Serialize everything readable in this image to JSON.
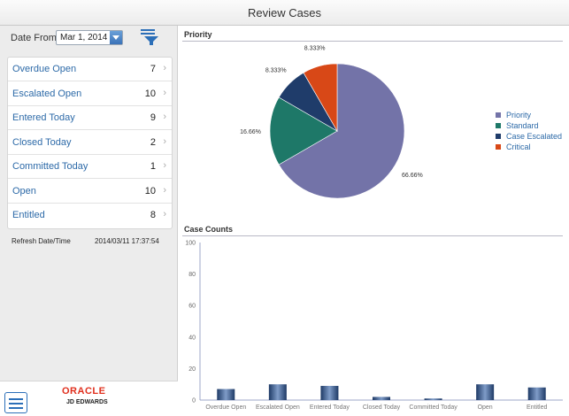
{
  "window": {
    "title": "Review Cases"
  },
  "filter": {
    "date_label": "Date From",
    "date_value": "Mar 1, 2014"
  },
  "cases": [
    {
      "label": "Overdue Open",
      "count": "7"
    },
    {
      "label": "Escalated Open",
      "count": "10"
    },
    {
      "label": "Entered Today",
      "count": "9"
    },
    {
      "label": "Closed Today",
      "count": "2"
    },
    {
      "label": "Committed Today",
      "count": "1"
    },
    {
      "label": "Open",
      "count": "10"
    },
    {
      "label": "Entitled",
      "count": "8"
    }
  ],
  "refresh": {
    "label": "Refresh Date/Time",
    "value": "2014/03/11 17:37:54"
  },
  "branding": {
    "logo_text": "ORACLE",
    "logo_subtext": "JD EDWARDS"
  },
  "chart_data": [
    {
      "type": "pie",
      "title": "Priority",
      "labels": [
        "Priority",
        "Standard",
        "Case Escalated",
        "Critical"
      ],
      "values": [
        66.66,
        16.66,
        8.333,
        8.333
      ],
      "value_labels": [
        "66.66%",
        "16.66%",
        "8.333%",
        "8.333%"
      ],
      "colors": [
        "#7373a8",
        "#1e7868",
        "#1f3c6a",
        "#d84817"
      ],
      "legend": "right"
    },
    {
      "type": "bar",
      "title": "Case Counts",
      "categories": [
        "Overdue Open",
        "Escalated Open",
        "Entered Today",
        "Closed Today",
        "Committed Today",
        "Open",
        "Entitled"
      ],
      "values": [
        7,
        10,
        9,
        2,
        1,
        10,
        8
      ],
      "ylim": [
        0,
        100
      ],
      "yticks": [
        "0",
        "20",
        "40",
        "60",
        "80",
        "100"
      ],
      "xlabel": "",
      "ylabel": ""
    }
  ]
}
